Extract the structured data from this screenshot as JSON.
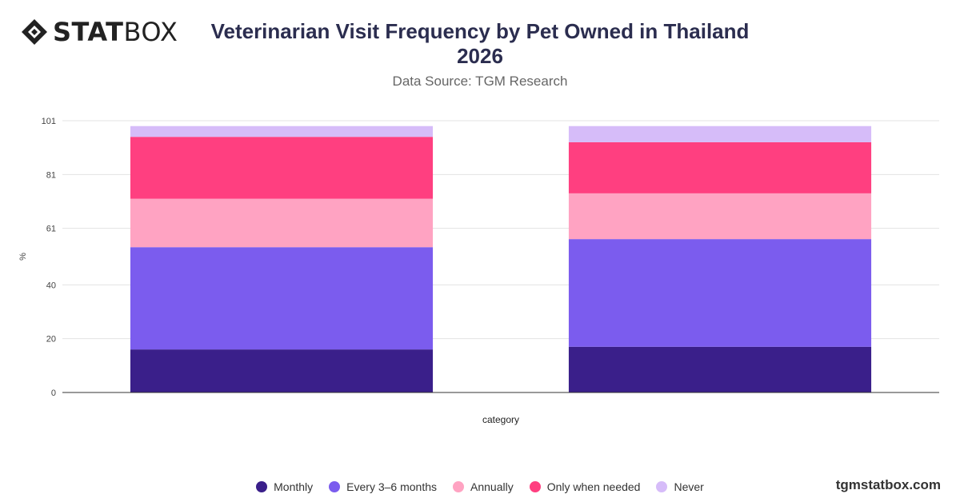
{
  "brand": {
    "logo_text_bold": "STAT",
    "logo_text_light": "BOX",
    "watermark": "tgmstatbox.com"
  },
  "header": {
    "title_line1": "Veterinarian Visit Frequency by Pet Owned in Thailand",
    "title_line2": "2026",
    "subtitle": "Data Source: TGM Research"
  },
  "chart_data": {
    "type": "bar",
    "stacked": true,
    "title": "Veterinarian Visit Frequency by Pet Owned in Thailand 2026",
    "subtitle": "Data Source: TGM Research",
    "xlabel": "category",
    "ylabel": "%",
    "ylim": [
      0,
      101
    ],
    "yticks": [
      0,
      20,
      40,
      61,
      81,
      101
    ],
    "categories": [
      "",
      ""
    ],
    "grid": true,
    "legend_position": "bottom",
    "series": [
      {
        "name": "Monthly",
        "color": "#3a1f8a",
        "values": [
          16,
          17
        ]
      },
      {
        "name": "Every 3–6 months",
        "color": "#7b5cee",
        "values": [
          38,
          40
        ]
      },
      {
        "name": "Annually",
        "color": "#ffa3c2",
        "values": [
          18,
          17
        ]
      },
      {
        "name": "Only when needed",
        "color": "#ff3f80",
        "values": [
          23,
          19
        ]
      },
      {
        "name": "Never",
        "color": "#d6bcf9",
        "values": [
          4,
          6
        ]
      }
    ]
  }
}
